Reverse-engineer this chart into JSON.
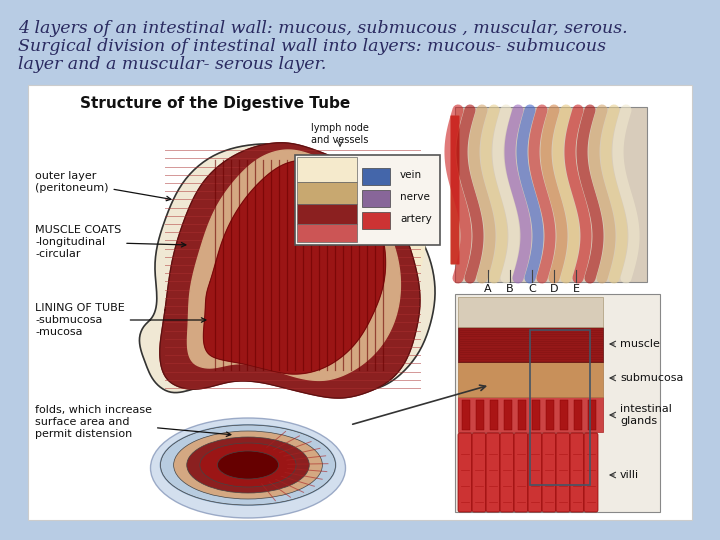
{
  "bg_color": "#b8cce4",
  "text_color": "#2a2a60",
  "text_fontsize": 12.5,
  "panel_color": "#ffffff",
  "panel_edge": "#cccccc",
  "title_text": "Structure of the Digestive Tube",
  "line1": "4 layers of an intestinal wall: mucous, submucous , muscular, serous.",
  "line2": "Surgical division of intestinal wall into layers: mucous- submucous",
  "line3": "layer and a muscular- serous layer.",
  "fig_width": 7.2,
  "fig_height": 5.4,
  "dpi": 100
}
